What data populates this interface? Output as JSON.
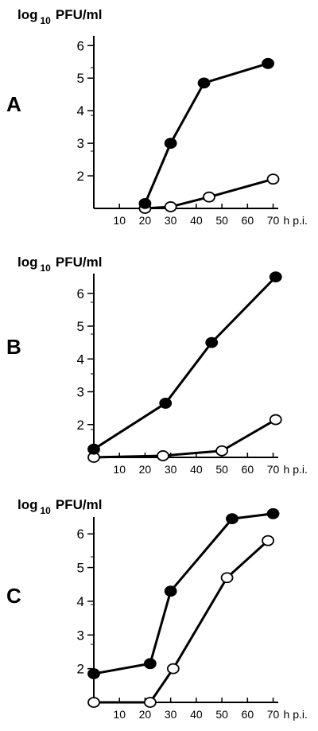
{
  "figure": {
    "ylabel_prefix": "log",
    "ylabel_subscript": "10",
    "ylabel_unit": "PFU/ml",
    "x_unit": "h p.i."
  },
  "chart_data": [
    {
      "type": "line",
      "panel": "A",
      "ylim": [
        1,
        6.3
      ],
      "xlim": [
        0,
        72
      ],
      "xticks": [
        10,
        20,
        30,
        40,
        50,
        60,
        70
      ],
      "yticks": [
        2,
        3,
        4,
        5,
        6
      ],
      "series": [
        {
          "marker": "filled",
          "x": [
            20,
            30,
            43,
            68
          ],
          "y": [
            1.15,
            3.0,
            4.85,
            5.45
          ]
        },
        {
          "marker": "open",
          "x": [
            20,
            30,
            45,
            70
          ],
          "y": [
            1.0,
            1.05,
            1.35,
            1.9
          ]
        }
      ]
    },
    {
      "type": "line",
      "panel": "B",
      "ylim": [
        1,
        6.6
      ],
      "xlim": [
        0,
        72
      ],
      "xticks": [
        10,
        20,
        30,
        40,
        50,
        60,
        70
      ],
      "yticks": [
        2,
        3,
        4,
        5,
        6
      ],
      "series": [
        {
          "marker": "filled",
          "x": [
            0,
            28,
            46,
            71
          ],
          "y": [
            1.25,
            2.65,
            4.5,
            6.5
          ]
        },
        {
          "marker": "open",
          "x": [
            0,
            27,
            50,
            71
          ],
          "y": [
            1.0,
            1.05,
            1.2,
            2.15
          ]
        }
      ]
    },
    {
      "type": "line",
      "panel": "C",
      "ylim": [
        1,
        6.5
      ],
      "xlim": [
        0,
        72
      ],
      "xticks": [
        10,
        20,
        30,
        40,
        50,
        60,
        70
      ],
      "yticks": [
        2,
        3,
        4,
        5,
        6
      ],
      "series": [
        {
          "marker": "filled",
          "x": [
            0,
            22,
            30,
            54,
            70
          ],
          "y": [
            1.85,
            2.15,
            4.3,
            6.45,
            6.6
          ]
        },
        {
          "marker": "open",
          "x": [
            0,
            22,
            31,
            52,
            68
          ],
          "y": [
            1.0,
            1.0,
            2.0,
            4.7,
            5.8
          ]
        }
      ]
    }
  ]
}
